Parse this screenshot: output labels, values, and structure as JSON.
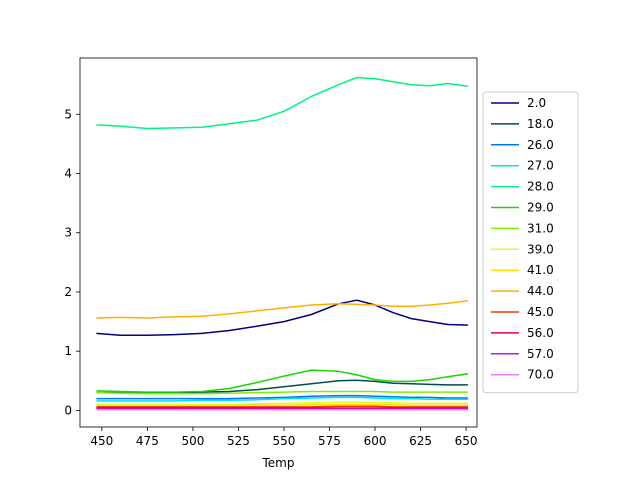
{
  "chart_data": {
    "type": "line",
    "title": "",
    "xlabel": "Temp",
    "ylabel": "",
    "xlim": [
      438,
      656
    ],
    "ylim": [
      -0.28,
      5.95
    ],
    "xticks": [
      450,
      475,
      500,
      525,
      550,
      575,
      600,
      625,
      650
    ],
    "yticks": [
      0,
      1,
      2,
      3,
      4,
      5
    ],
    "grid": false,
    "legend_position": "right",
    "x": [
      447,
      460,
      475,
      490,
      505,
      520,
      535,
      550,
      565,
      580,
      590,
      600,
      610,
      620,
      630,
      640,
      651
    ],
    "series": [
      {
        "name": "2.0",
        "color": "#000080",
        "values": [
          1.3,
          1.27,
          1.27,
          1.28,
          1.3,
          1.35,
          1.42,
          1.5,
          1.62,
          1.8,
          1.86,
          1.78,
          1.65,
          1.55,
          1.5,
          1.45,
          1.44
        ]
      },
      {
        "name": "18.0",
        "color": "#004d4d",
        "values": [
          0.3,
          0.3,
          0.3,
          0.3,
          0.31,
          0.32,
          0.35,
          0.4,
          0.45,
          0.5,
          0.51,
          0.49,
          0.46,
          0.45,
          0.44,
          0.43,
          0.43
        ]
      },
      {
        "name": "26.0",
        "color": "#0073ff",
        "values": [
          0.2,
          0.2,
          0.2,
          0.2,
          0.2,
          0.2,
          0.21,
          0.22,
          0.24,
          0.25,
          0.25,
          0.24,
          0.23,
          0.22,
          0.22,
          0.21,
          0.21
        ]
      },
      {
        "name": "27.0",
        "color": "#00e5e5",
        "values": [
          0.16,
          0.16,
          0.16,
          0.16,
          0.17,
          0.17,
          0.18,
          0.2,
          0.21,
          0.22,
          0.22,
          0.21,
          0.2,
          0.2,
          0.19,
          0.19,
          0.19
        ]
      },
      {
        "name": "28.0",
        "color": "#00f582",
        "values": [
          4.82,
          4.8,
          4.76,
          4.77,
          4.78,
          4.84,
          4.9,
          5.05,
          5.3,
          5.5,
          5.62,
          5.6,
          5.55,
          5.5,
          5.48,
          5.52,
          5.47
        ]
      },
      {
        "name": "29.0",
        "color": "#1ad700",
        "values": [
          0.33,
          0.32,
          0.31,
          0.31,
          0.32,
          0.37,
          0.47,
          0.58,
          0.68,
          0.66,
          0.6,
          0.52,
          0.49,
          0.49,
          0.52,
          0.57,
          0.62
        ]
      },
      {
        "name": "31.0",
        "color": "#80f000",
        "values": [
          0.3,
          0.29,
          0.28,
          0.28,
          0.28,
          0.29,
          0.3,
          0.31,
          0.32,
          0.32,
          0.32,
          0.32,
          0.31,
          0.31,
          0.31,
          0.31,
          0.31
        ]
      },
      {
        "name": "39.0",
        "color": "#d4ff33",
        "values": [
          0.1,
          0.1,
          0.1,
          0.1,
          0.1,
          0.1,
          0.11,
          0.12,
          0.13,
          0.14,
          0.14,
          0.13,
          0.13,
          0.12,
          0.12,
          0.12,
          0.12
        ]
      },
      {
        "name": "41.0",
        "color": "#ffe000",
        "values": [
          0.08,
          0.08,
          0.08,
          0.08,
          0.08,
          0.08,
          0.09,
          0.09,
          0.1,
          0.1,
          0.1,
          0.1,
          0.1,
          0.09,
          0.09,
          0.09,
          0.09
        ]
      },
      {
        "name": "44.0",
        "color": "#ffb000",
        "values": [
          1.56,
          1.57,
          1.56,
          1.58,
          1.59,
          1.63,
          1.68,
          1.73,
          1.78,
          1.8,
          1.79,
          1.78,
          1.76,
          1.76,
          1.78,
          1.81,
          1.85
        ]
      },
      {
        "name": "45.0",
        "color": "#ff3000",
        "values": [
          0.06,
          0.06,
          0.06,
          0.06,
          0.06,
          0.06,
          0.06,
          0.06,
          0.06,
          0.07,
          0.07,
          0.07,
          0.06,
          0.06,
          0.06,
          0.06,
          0.06
        ]
      },
      {
        "name": "56.0",
        "color": "#e0005a",
        "values": [
          0.04,
          0.04,
          0.04,
          0.04,
          0.04,
          0.04,
          0.04,
          0.04,
          0.04,
          0.04,
          0.04,
          0.04,
          0.04,
          0.04,
          0.04,
          0.04,
          0.04
        ]
      },
      {
        "name": "57.0",
        "color": "#b020ff",
        "values": [
          0.02,
          0.02,
          0.02,
          0.02,
          0.02,
          0.02,
          0.02,
          0.02,
          0.02,
          0.02,
          0.02,
          0.02,
          0.02,
          0.02,
          0.02,
          0.02,
          0.02
        ]
      },
      {
        "name": "70.0",
        "color": "#f080f0",
        "values": [
          0.01,
          0.01,
          0.01,
          0.01,
          0.01,
          0.01,
          0.01,
          0.01,
          0.01,
          0.01,
          0.01,
          0.01,
          0.01,
          0.01,
          0.01,
          0.01,
          0.01
        ]
      }
    ]
  }
}
